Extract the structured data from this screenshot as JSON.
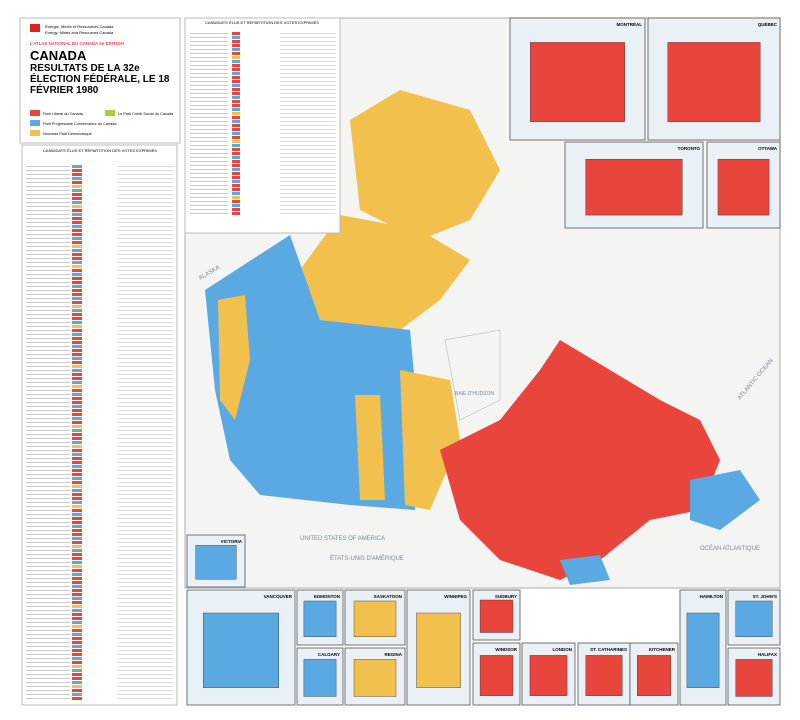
{
  "header": {
    "agency_fr": "Énergie, Mines et Ressources Canada",
    "agency_en": "Energy, Mines and Resources Canada",
    "atlas": "L'ATLAS NATIONAL DU CANADA 5e ÉDITION",
    "title": "CANADA",
    "subtitle": "RÉSULTATS DE LA 32e ÉLECTION FÉDÉRALE, LE 18 FÉVRIER 1980"
  },
  "legend": [
    {
      "label": "Parti Libéral du Canada",
      "color": "#e8453c"
    },
    {
      "label": "Parti Progressiste Conservateur du Canada",
      "color": "#5aa9e3"
    },
    {
      "label": "Nouveau Parti Démocratique",
      "color": "#f2c04c"
    },
    {
      "label": "Le Parti Crédit Social du Canada",
      "color": "#a6cf3c"
    }
  ],
  "tables": {
    "left_title": "CANDIDATS ÉLUS ET RÉPARTITION DES VOTES EXPRIMÉS",
    "top_title": "CANDIDATS ÉLUS ET RÉPARTITION DES VOTES EXPRIMÉS"
  },
  "map_labels": {
    "ocean_fr": "OCÉAN ATLANTIQUE",
    "ocean_en": "ATLANTIC OCEAN",
    "bay": "BAIE D'HUDSON",
    "usa_en": "UNITED STATES OF AMERICA",
    "usa_fr": "ÉTATS-UNIS D'AMÉRIQUE",
    "alaska": "ALASKA"
  },
  "insets": [
    {
      "name": "MONTRÉAL",
      "color": "#e8453c"
    },
    {
      "name": "QUÉBEC",
      "color": "#e8453c"
    },
    {
      "name": "TORONTO",
      "color": "#e8453c"
    },
    {
      "name": "OTTAWA",
      "color": "#e8453c"
    },
    {
      "name": "VICTORIA",
      "color": "#5aa9e3"
    },
    {
      "name": "VANCOUVER",
      "color": "#5aa9e3"
    },
    {
      "name": "EDMONTON",
      "color": "#5aa9e3"
    },
    {
      "name": "CALGARY",
      "color": "#5aa9e3"
    },
    {
      "name": "SASKATOON",
      "color": "#f2c04c"
    },
    {
      "name": "REGINA",
      "color": "#f2c04c"
    },
    {
      "name": "WINNIPEG",
      "color": "#f2c04c"
    },
    {
      "name": "SUDBURY",
      "color": "#e8453c"
    },
    {
      "name": "WINDSOR",
      "color": "#e8453c"
    },
    {
      "name": "LONDON",
      "color": "#e8453c"
    },
    {
      "name": "ST. CATHARINES",
      "color": "#e8453c"
    },
    {
      "name": "KITCHENER",
      "color": "#e8453c"
    },
    {
      "name": "HAMILTON",
      "color": "#5aa9e3"
    },
    {
      "name": "ST. JOHN'S",
      "color": "#5aa9e3"
    },
    {
      "name": "HALIFAX",
      "color": "#e8453c"
    }
  ]
}
